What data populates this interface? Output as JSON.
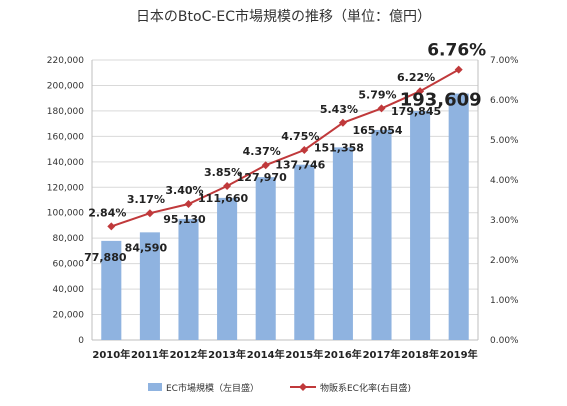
{
  "chart_data": {
    "type": "bar",
    "title": "日本のBtoC-EC市場規模の推移（単位：億円）",
    "categories": [
      "2010年",
      "2011年",
      "2012年",
      "2013年",
      "2014年",
      "2015年",
      "2016年",
      "2017年",
      "2018年",
      "2019年"
    ],
    "series": [
      {
        "name": "EC市場規模（左目盛）",
        "type": "bar",
        "axis": "left",
        "color": "#8fb3e0",
        "values": [
          77880,
          84590,
          95130,
          111660,
          127970,
          137746,
          151358,
          165054,
          179845,
          193609
        ],
        "labels": [
          "77,880",
          "84,590",
          "95,130",
          "111,660",
          "127,970",
          "137,746",
          "151,358",
          "165,054",
          "179,845",
          "193,609"
        ]
      },
      {
        "name": "物販系EC化率(右目盛)",
        "type": "line",
        "axis": "right",
        "color": "#c0393b",
        "values": [
          2.84,
          3.17,
          3.4,
          3.85,
          4.37,
          4.75,
          5.43,
          5.79,
          6.22,
          6.76
        ],
        "labels": [
          "2.84%",
          "3.17%",
          "3.40%",
          "3.85%",
          "4.37%",
          "4.75%",
          "5.43%",
          "5.79%",
          "6.22%",
          "6.76%"
        ]
      }
    ],
    "y_left": {
      "range": [
        0,
        220000
      ],
      "ticks": [
        "0",
        "20,000",
        "40,000",
        "60,000",
        "80,000",
        "100,000",
        "120,000",
        "140,000",
        "160,000",
        "180,000",
        "200,000",
        "220,000"
      ]
    },
    "y_right": {
      "range": [
        0,
        7
      ],
      "ticks": [
        "0.00%",
        "1.00%",
        "2.00%",
        "3.00%",
        "4.00%",
        "5.00%",
        "6.00%",
        "7.00%"
      ]
    },
    "grid": true,
    "legend_position": "bottom",
    "highlight": {
      "bar_label_color": "#1f3a7a",
      "rate_label_color": "#e0302f"
    }
  }
}
